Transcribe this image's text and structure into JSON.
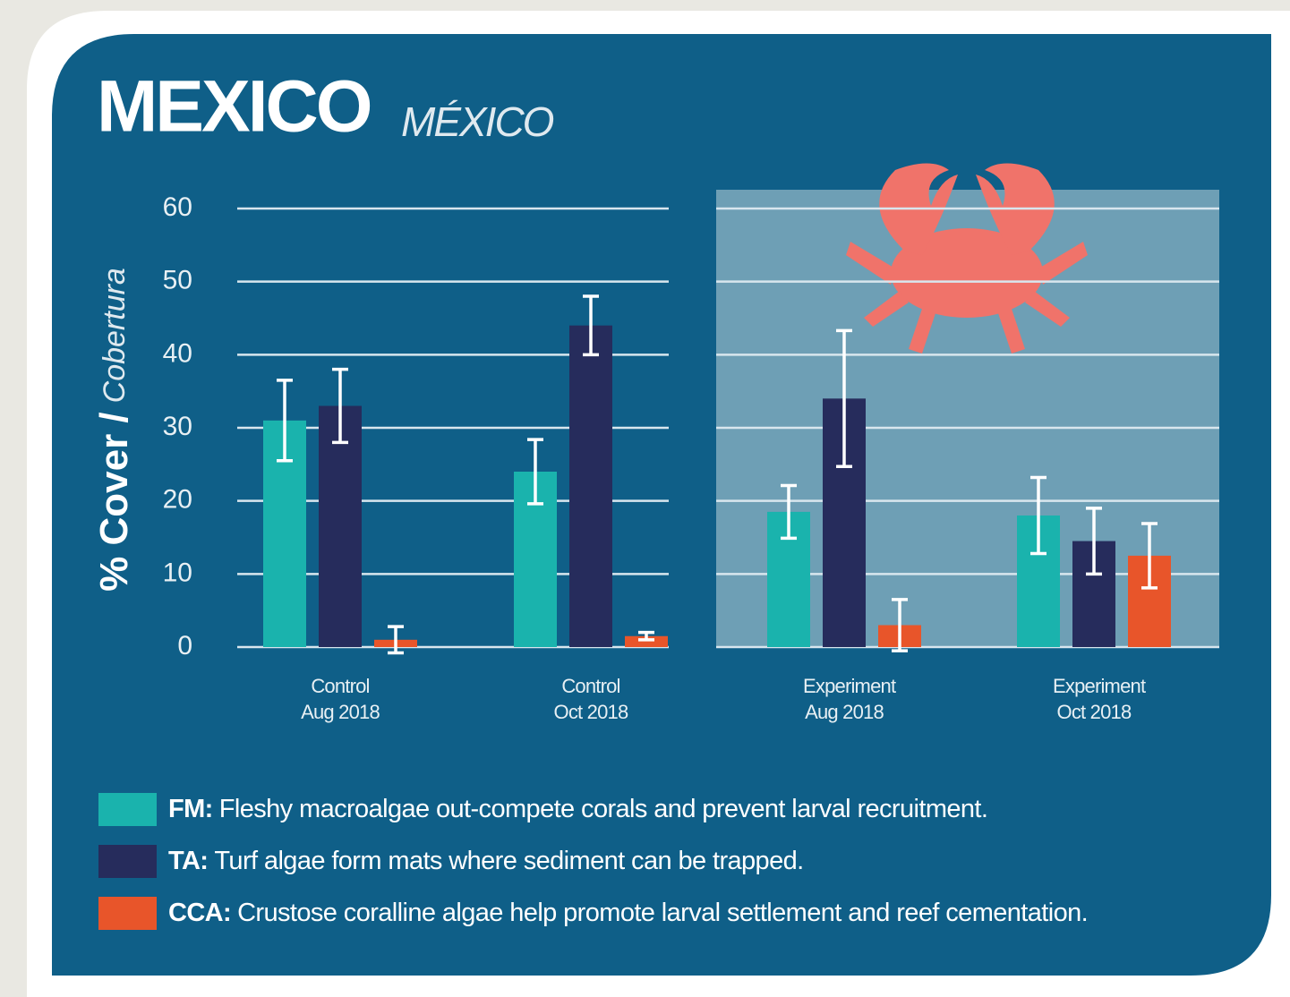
{
  "chart_data": {
    "type": "bar",
    "title": "MEXICO",
    "subtitle": "MÉXICO",
    "y_label": {
      "main": "% Cover /",
      "alt": "Cobertura"
    },
    "categories": [
      "Control Aug 2018",
      "Control Oct 2018",
      "Experiment Aug 2018",
      "Experiment Oct 2018"
    ],
    "series": [
      {
        "name": "FM:",
        "description": "Fleshy macroalgae out-compete corals and prevent larval recruitment.",
        "color": "#1ab3ad",
        "values": [
          31,
          24,
          18.5,
          18
        ],
        "errors": [
          5.5,
          4.4,
          3.6,
          5.2
        ]
      },
      {
        "name": "TA:",
        "description": "Turf algae form mats where sediment can be trapped.",
        "color": "#262c5c",
        "values": [
          33,
          44,
          34,
          14.5
        ],
        "errors": [
          5,
          4,
          9.3,
          4.5
        ]
      },
      {
        "name": "CCA:",
        "description": "Crustose coralline algae help promote larval settlement and reef cementation.",
        "color": "#e8552a",
        "values": [
          1,
          1.5,
          3,
          12.5
        ],
        "errors": [
          1.8,
          0.5,
          3.5,
          4.4
        ]
      }
    ],
    "ylim": [
      0,
      60
    ],
    "yticks": [
      0,
      10,
      20,
      30,
      40,
      50,
      60
    ],
    "grid": true
  }
}
